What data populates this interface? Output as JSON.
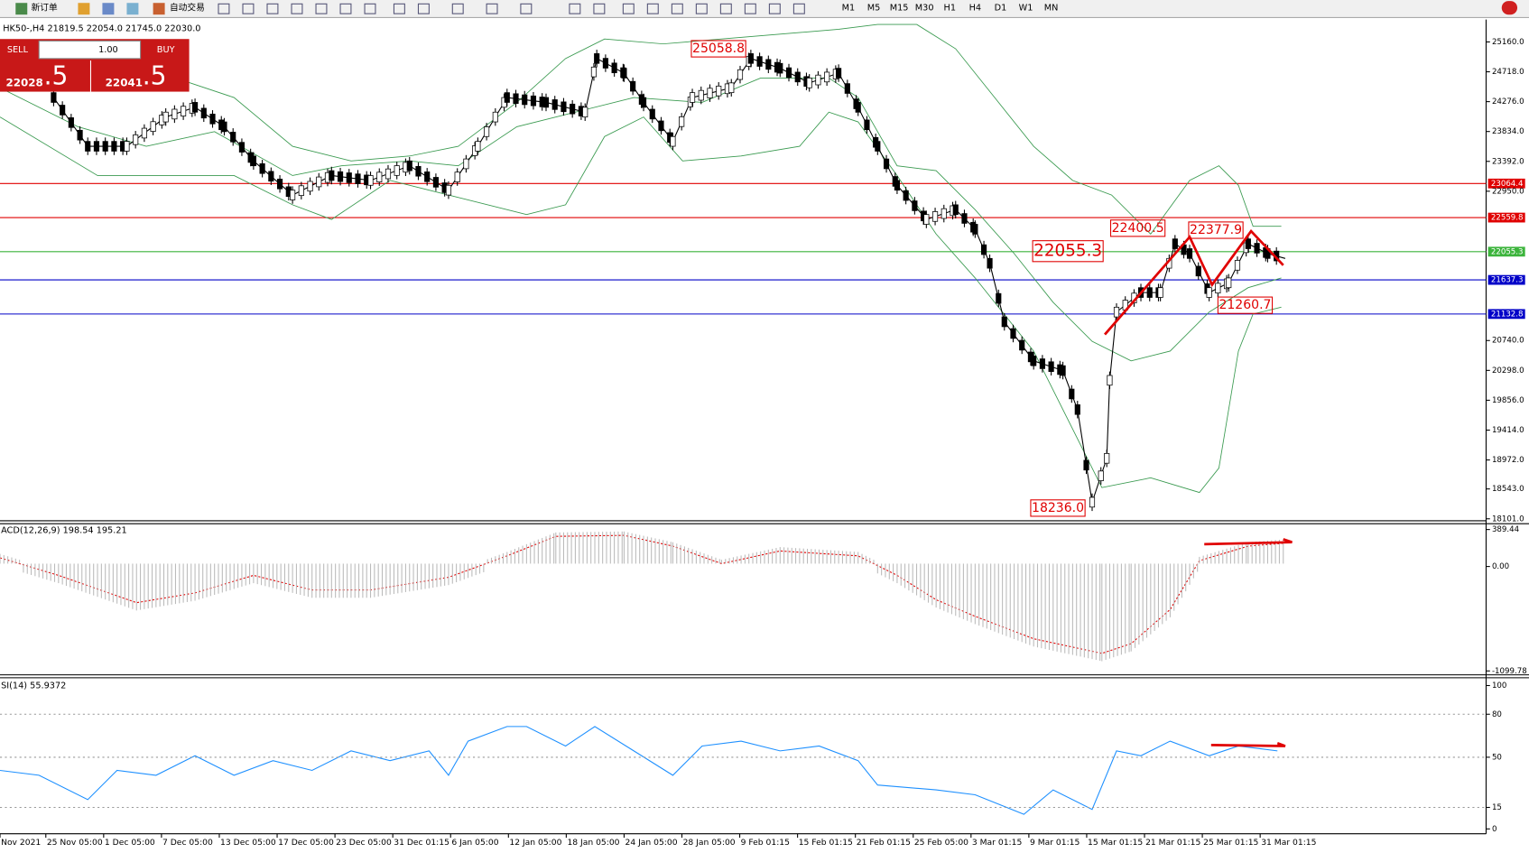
{
  "toolbar": {
    "new_order": "新订单",
    "auto_trading": "自动交易",
    "timeframes": [
      "M1",
      "M5",
      "M15",
      "M30",
      "H1",
      "H4",
      "D1",
      "W1",
      "MN"
    ]
  },
  "trade_panel": {
    "sell": "SELL",
    "buy": "BUY",
    "volume": "1.00",
    "bid_main": "22028",
    "bid_small": ".5",
    "ask_main": "22041",
    "ask_small": ".5"
  },
  "main_chart": {
    "symbol_info": "HK50-,H4  21819.5 22054.0 21745.0 22030.0",
    "yticks": [
      {
        "value": 25160,
        "label": "25160.0"
      },
      {
        "value": 24718,
        "label": "24718.0"
      },
      {
        "value": 24276,
        "label": "24276.0"
      },
      {
        "value": 23834,
        "label": "23834.0"
      },
      {
        "value": 23392,
        "label": "23392.0"
      },
      {
        "value": 22950,
        "label": "22950.0"
      },
      {
        "value": 20740,
        "label": "20740.0"
      },
      {
        "value": 20298,
        "label": "20298.0"
      },
      {
        "value": 19856,
        "label": "19856.0"
      },
      {
        "value": 19414,
        "label": "19414.0"
      },
      {
        "value": 18972,
        "label": "18972.0"
      },
      {
        "value": 18543,
        "label": "18543.0"
      },
      {
        "value": 18101,
        "label": "18101.0"
      }
    ],
    "ylim": [
      18101,
      25160
    ],
    "levels": [
      {
        "value": 23064.4,
        "label": "23064.4",
        "color": "#e00000"
      },
      {
        "value": 22559.8,
        "label": "22559.8",
        "color": "#e00000"
      },
      {
        "value": 22055.3,
        "label": "22055.3",
        "color": "#3cb43c"
      },
      {
        "value": 21637.3,
        "label": "21637.3",
        "color": "#0000c8"
      },
      {
        "value": 21132.8,
        "label": "21132.8",
        "color": "#0000c8"
      }
    ],
    "annotations": [
      "25058.8",
      "22400.5",
      "22377.9",
      "22055.3",
      "21260.7",
      "18236.0"
    ]
  },
  "macd": {
    "label": "ACD(12,26,9) 198.54 195.21",
    "yticks": [
      {
        "value": 389.44,
        "label": "389.44"
      },
      {
        "value": 0,
        "label": "0.00"
      },
      {
        "value": -1099.78,
        "label": "-1099.78"
      }
    ],
    "ylim": [
      -1099.78,
      389.44
    ]
  },
  "rsi": {
    "label": "SI(14) 55.9372",
    "yticks": [
      100,
      80,
      50,
      15,
      0
    ],
    "ylim": [
      0,
      100
    ]
  },
  "time_labels": [
    "Nov 2021",
    "25 Nov 05:00",
    "1 Dec 05:00",
    "7 Dec 05:00",
    "13 Dec 05:00",
    "17 Dec 05:00",
    "23 Dec 05:00",
    "31 Dec 01:15",
    "6 Jan 05:00",
    "12 Jan 05:00",
    "18 Jan 05:00",
    "24 Jan 05:00",
    "28 Jan 05:00",
    "9 Feb 01:15",
    "15 Feb 01:15",
    "21 Feb 01:15",
    "25 Feb 05:00",
    "3 Mar 01:15",
    "9 Mar 01:15",
    "15 Mar 01:15",
    "21 Mar 01:15",
    "25 Mar 01:15",
    "31 Mar 01:15"
  ]
}
